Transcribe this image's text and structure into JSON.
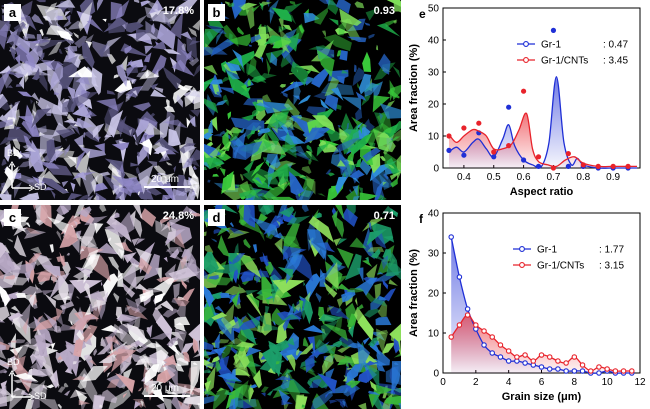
{
  "panels": [
    {
      "label": "a",
      "value": "17.8%",
      "scale": "20 μm",
      "axes": {
        "y": "BD",
        "x": "SD"
      },
      "base": "#0b0b10",
      "colors": [
        "#c8c4e6",
        "#a9a3d6",
        "#ffffff",
        "#8f87c6",
        "#5a5680"
      ]
    },
    {
      "label": "b",
      "value": "0.93",
      "scale": "",
      "axes": null,
      "base": "#000000",
      "colors": [
        "#39c83a",
        "#7fe05a",
        "#2f8fd9",
        "#1fb04a",
        "#2666c9"
      ]
    },
    {
      "label": "c",
      "value": "24.8%",
      "scale": "",
      "axes": null,
      "base": "#0b0b10",
      "colors": [
        "#e6dfe8",
        "#cfc2d8",
        "#ffffff",
        "#b8a9c6",
        "#d7a3a8"
      ]
    },
    {
      "label": "d",
      "value": "0.71",
      "scale": "",
      "axes": null,
      "base": "#000000",
      "colors": [
        "#3bb93a",
        "#8ee05c",
        "#2a7ad9",
        "#1c9e6a",
        "#2253c9"
      ]
    },
    {
      "label": "",
      "value": "",
      "scale": "20 μm",
      "axes": {
        "y": "BD",
        "x": "SD"
      },
      "base": "",
      "colors": []
    }
  ],
  "chart_data": [
    {
      "panel_label": "e",
      "type": "line",
      "xlabel": "Aspect ratio",
      "ylabel": "Area fraction (%)",
      "xlim": [
        0.33,
        0.99
      ],
      "ylim": [
        0,
        50
      ],
      "xticks": [
        "0.4",
        "0.5",
        "0.6",
        "0.7",
        "0.8",
        "0.9"
      ],
      "yticks": [
        "0",
        "10",
        "20",
        "30",
        "40",
        "50"
      ],
      "legend": "top-right",
      "series": [
        {
          "name": "Gr-1",
          "legend_value": ": 0.47",
          "color": "#1f2fd6",
          "points": [
            [
              0.35,
              5.5
            ],
            [
              0.4,
              4
            ],
            [
              0.45,
              11
            ],
            [
              0.5,
              3.5
            ],
            [
              0.55,
              19
            ],
            [
              0.6,
              2.5
            ],
            [
              0.65,
              0.5
            ],
            [
              0.7,
              43
            ],
            [
              0.75,
              0.5
            ],
            [
              0.8,
              0.5
            ],
            [
              0.85,
              0
            ],
            [
              0.9,
              0
            ],
            [
              0.95,
              0
            ]
          ],
          "curve": [
            [
              0.35,
              5
            ],
            [
              0.375,
              6.5
            ],
            [
              0.4,
              5
            ],
            [
              0.43,
              8
            ],
            [
              0.45,
              9
            ],
            [
              0.475,
              6
            ],
            [
              0.5,
              3.5
            ],
            [
              0.53,
              9
            ],
            [
              0.55,
              13.5
            ],
            [
              0.57,
              7
            ],
            [
              0.6,
              2.5
            ],
            [
              0.63,
              1
            ],
            [
              0.66,
              0.5
            ],
            [
              0.685,
              8
            ],
            [
              0.71,
              28.5
            ],
            [
              0.735,
              8
            ],
            [
              0.76,
              1
            ],
            [
              0.78,
              3
            ],
            [
              0.8,
              1
            ],
            [
              0.85,
              0
            ],
            [
              0.9,
              0
            ],
            [
              0.95,
              0
            ],
            [
              0.98,
              0
            ]
          ]
        },
        {
          "name": "Gr-1/CNTs",
          "legend_value": ": 3.45",
          "color": "#e8232b",
          "points": [
            [
              0.35,
              10
            ],
            [
              0.4,
              12.5
            ],
            [
              0.45,
              14
            ],
            [
              0.5,
              5
            ],
            [
              0.55,
              7
            ],
            [
              0.6,
              24
            ],
            [
              0.65,
              3.5
            ],
            [
              0.7,
              0
            ],
            [
              0.75,
              4.5
            ],
            [
              0.8,
              1
            ],
            [
              0.85,
              0.5
            ],
            [
              0.9,
              0.5
            ],
            [
              0.95,
              0.5
            ]
          ],
          "curve": [
            [
              0.35,
              10.5
            ],
            [
              0.375,
              8
            ],
            [
              0.4,
              10
            ],
            [
              0.43,
              12
            ],
            [
              0.45,
              11.5
            ],
            [
              0.475,
              10
            ],
            [
              0.5,
              6
            ],
            [
              0.53,
              6
            ],
            [
              0.56,
              7.5
            ],
            [
              0.585,
              12
            ],
            [
              0.61,
              17
            ],
            [
              0.63,
              6
            ],
            [
              0.65,
              2
            ],
            [
              0.68,
              1
            ],
            [
              0.71,
              0.5
            ],
            [
              0.74,
              2.5
            ],
            [
              0.77,
              3.5
            ],
            [
              0.8,
              1.5
            ],
            [
              0.85,
              0.5
            ],
            [
              0.9,
              0.5
            ],
            [
              0.95,
              0.5
            ],
            [
              0.98,
              0.5
            ]
          ]
        }
      ]
    },
    {
      "panel_label": "f",
      "type": "line",
      "xlabel": "Grain size (μm)",
      "ylabel": "Area fraction (%)",
      "xlim": [
        0,
        12
      ],
      "ylim": [
        0,
        40
      ],
      "xticks": [
        "0",
        "2",
        "4",
        "6",
        "8",
        "10",
        "12"
      ],
      "yticks": [
        "0",
        "10",
        "20",
        "30",
        "40"
      ],
      "legend": "top-right",
      "series": [
        {
          "name": "Gr-1",
          "legend_value": ": 1.77",
          "color": "#1f2fd6",
          "points": [
            [
              0.5,
              34
            ],
            [
              1,
              24
            ],
            [
              1.5,
              16
            ],
            [
              2,
              11
            ],
            [
              2.5,
              7
            ],
            [
              3,
              5
            ],
            [
              3.5,
              4
            ],
            [
              4,
              3
            ],
            [
              4.5,
              3
            ],
            [
              5,
              2.5
            ],
            [
              5.5,
              2
            ],
            [
              6,
              1.5
            ],
            [
              6.5,
              1
            ],
            [
              7,
              1
            ],
            [
              7.5,
              0.5
            ],
            [
              8,
              0.5
            ],
            [
              8.5,
              0.5
            ],
            [
              9,
              0
            ],
            [
              9.5,
              0
            ],
            [
              10,
              0.5
            ],
            [
              10.5,
              0
            ],
            [
              11,
              0
            ],
            [
              11.5,
              0
            ]
          ]
        },
        {
          "name": "Gr-1/CNTs",
          "legend_value": ": 3.15",
          "color": "#e8232b",
          "points": [
            [
              0.5,
              9
            ],
            [
              1,
              12
            ],
            [
              1.5,
              14.5
            ],
            [
              2,
              12
            ],
            [
              2.5,
              10.5
            ],
            [
              3,
              9
            ],
            [
              3.5,
              7
            ],
            [
              4,
              5.5
            ],
            [
              4.5,
              4
            ],
            [
              5,
              4.5
            ],
            [
              5.5,
              3
            ],
            [
              6,
              4.5
            ],
            [
              6.5,
              4
            ],
            [
              7,
              3
            ],
            [
              7.5,
              2.5
            ],
            [
              8,
              4
            ],
            [
              8.5,
              2
            ],
            [
              9,
              0.5
            ],
            [
              9.5,
              1.5
            ],
            [
              10,
              1
            ],
            [
              10.5,
              0.5
            ],
            [
              11,
              0.5
            ],
            [
              11.5,
              0.5
            ]
          ]
        }
      ]
    }
  ]
}
